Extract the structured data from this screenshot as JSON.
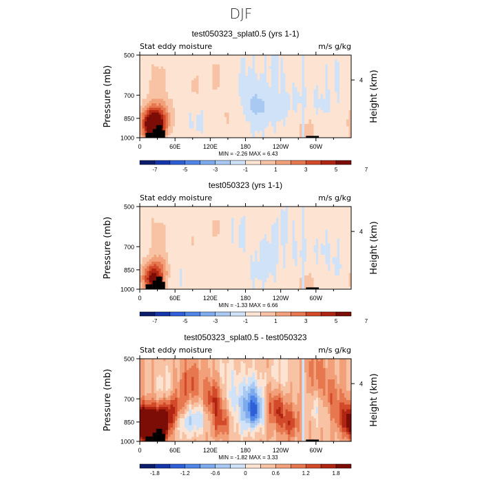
{
  "figure": {
    "season_title": "DJF"
  },
  "colors": {
    "fill_neg": [
      "#0a1c6a",
      "#1535aa",
      "#2f5fd6",
      "#4f86e8",
      "#7eaaee",
      "#a9c9f2",
      "#cfe2f8"
    ],
    "fill_pos": [
      "#fde3d2",
      "#f7c3a4",
      "#f1a07a",
      "#e6774f",
      "#d24a2a",
      "#b02412",
      "#7c0d06"
    ],
    "topo": "#000000",
    "axis": "#000000"
  },
  "chart_data": [
    {
      "type": "heatmap",
      "title": "test050323_splat0.5 (yrs 1-1)",
      "left_label": "Stat eddy moisture",
      "right_label": "m/s g/kg",
      "ylabel": "Pressure (mb)",
      "y2label": "Height (km)",
      "yticks": [
        "500",
        "700",
        "850",
        "1000"
      ],
      "y2ticks": [
        "4"
      ],
      "xticks": [
        "0",
        "60E",
        "120E",
        "180",
        "120W",
        "60W"
      ],
      "xlim": [
        0,
        360
      ],
      "ylim": [
        1000,
        500
      ],
      "stats": {
        "min_label": "MIN =",
        "min": "-2.26",
        "max_label": "MAX =",
        "max": "6.43"
      },
      "colorbar_ticks": [
        "-7",
        "-5",
        "-3",
        "-1",
        "1",
        "3",
        "5",
        "7"
      ],
      "features": [
        {
          "lon": 180,
          "p": 620,
          "v": -0.4
        },
        {
          "lon": 200,
          "p": 900,
          "v": -0.3
        },
        {
          "lon": 230,
          "p": 560,
          "v": -0.35
        },
        {
          "lon": 270,
          "p": 720,
          "v": -0.35
        },
        {
          "lon": 305,
          "p": 760,
          "v": -0.4
        },
        {
          "lon": 335,
          "p": 620,
          "v": -0.3
        },
        {
          "lon": 100,
          "p": 870,
          "v": -0.35
        },
        {
          "lon": 20,
          "p": 870,
          "v": 4.5
        },
        {
          "lon": 25,
          "p": 930,
          "v": 5.5
        },
        {
          "lon": 40,
          "p": 820,
          "v": 2.0
        },
        {
          "lon": 30,
          "p": 620,
          "v": 1.2
        },
        {
          "lon": 95,
          "p": 650,
          "v": 0.8
        },
        {
          "lon": 130,
          "p": 600,
          "v": 0.9
        },
        {
          "lon": 200,
          "p": 760,
          "v": -1.5
        },
        {
          "lon": 235,
          "p": 780,
          "v": -0.6
        },
        {
          "lon": 150,
          "p": 840,
          "v": 0.7
        },
        {
          "lon": 280,
          "p": 520,
          "v": 0.5
        },
        {
          "lon": 285,
          "p": 940,
          "v": 1.2
        }
      ]
    },
    {
      "type": "heatmap",
      "title": "test050323 (yrs 1-1)",
      "left_label": "Stat eddy moisture",
      "right_label": "m/s g/kg",
      "ylabel": "Pressure (mb)",
      "y2label": "Height (km)",
      "yticks": [
        "500",
        "700",
        "850",
        "1000"
      ],
      "y2ticks": [
        "4"
      ],
      "xticks": [
        "0",
        "60E",
        "120E",
        "180",
        "120W",
        "60W"
      ],
      "xlim": [
        0,
        360
      ],
      "ylim": [
        1000,
        500
      ],
      "stats": {
        "min_label": "MIN =",
        "min": "-1.33",
        "max_label": "MAX =",
        "max": "6.66"
      },
      "colorbar_ticks": [
        "-7",
        "-5",
        "-3",
        "-1",
        "1",
        "3",
        "5",
        "7"
      ],
      "features": [
        {
          "lon": 170,
          "p": 640,
          "v": -0.35
        },
        {
          "lon": 205,
          "p": 880,
          "v": -0.35
        },
        {
          "lon": 245,
          "p": 600,
          "v": -0.35
        },
        {
          "lon": 275,
          "p": 760,
          "v": -0.35
        },
        {
          "lon": 310,
          "p": 700,
          "v": -0.35
        },
        {
          "lon": 340,
          "p": 820,
          "v": -0.3
        },
        {
          "lon": 60,
          "p": 900,
          "v": -0.3
        },
        {
          "lon": 20,
          "p": 900,
          "v": 2.8
        },
        {
          "lon": 25,
          "p": 940,
          "v": 3.5
        },
        {
          "lon": 35,
          "p": 820,
          "v": 1.6
        },
        {
          "lon": 30,
          "p": 620,
          "v": 1.0
        },
        {
          "lon": 90,
          "p": 660,
          "v": 0.7
        },
        {
          "lon": 130,
          "p": 600,
          "v": 0.8
        },
        {
          "lon": 220,
          "p": 760,
          "v": -0.6
        },
        {
          "lon": 150,
          "p": 860,
          "v": 0.6
        },
        {
          "lon": 295,
          "p": 540,
          "v": 0.5
        },
        {
          "lon": 285,
          "p": 940,
          "v": 1.1
        }
      ]
    },
    {
      "type": "heatmap",
      "title": "test050323_splat0.5 - test050323",
      "left_label": "Stat eddy moisture",
      "right_label": "m/s g/kg",
      "ylabel": "Pressure (mb)",
      "y2label": "Height (km)",
      "yticks": [
        "500",
        "700",
        "850",
        "1000"
      ],
      "y2ticks": [
        "4"
      ],
      "xticks": [
        "0",
        "60E",
        "120E",
        "180",
        "120W",
        "60W"
      ],
      "xlim": [
        0,
        360
      ],
      "ylim": [
        1000,
        500
      ],
      "stats": {
        "min_label": "MIN =",
        "min": "-1.82",
        "max_label": "MAX =",
        "max": "3.33"
      },
      "colorbar_ticks": [
        "-1.8",
        "-1.2",
        "-0.6",
        "0",
        "0.6",
        "1.2",
        "1.8"
      ],
      "features": [
        {
          "lon": 12,
          "p": 860,
          "v": 1.9
        },
        {
          "lon": 25,
          "p": 920,
          "v": 2.6
        },
        {
          "lon": 40,
          "p": 820,
          "v": 1.0
        },
        {
          "lon": 60,
          "p": 760,
          "v": 0.9
        },
        {
          "lon": 85,
          "p": 620,
          "v": 0.7
        },
        {
          "lon": 100,
          "p": 820,
          "v": -0.7
        },
        {
          "lon": 75,
          "p": 850,
          "v": -0.7
        },
        {
          "lon": 125,
          "p": 700,
          "v": 0.9
        },
        {
          "lon": 140,
          "p": 850,
          "v": 0.8
        },
        {
          "lon": 160,
          "p": 720,
          "v": -0.6
        },
        {
          "lon": 150,
          "p": 580,
          "v": -0.4
        },
        {
          "lon": 195,
          "p": 780,
          "v": -1.7
        },
        {
          "lon": 190,
          "p": 650,
          "v": -0.7
        },
        {
          "lon": 230,
          "p": 760,
          "v": 0.9
        },
        {
          "lon": 255,
          "p": 860,
          "v": 0.8
        },
        {
          "lon": 240,
          "p": 560,
          "v": -0.4
        },
        {
          "lon": 300,
          "p": 560,
          "v": 0.5
        },
        {
          "lon": 305,
          "p": 760,
          "v": -0.5
        },
        {
          "lon": 325,
          "p": 700,
          "v": 0.6
        },
        {
          "lon": 350,
          "p": 820,
          "v": 0.8
        },
        {
          "lon": 45,
          "p": 650,
          "v": -0.5
        },
        {
          "lon": 170,
          "p": 900,
          "v": -0.4
        }
      ]
    }
  ]
}
